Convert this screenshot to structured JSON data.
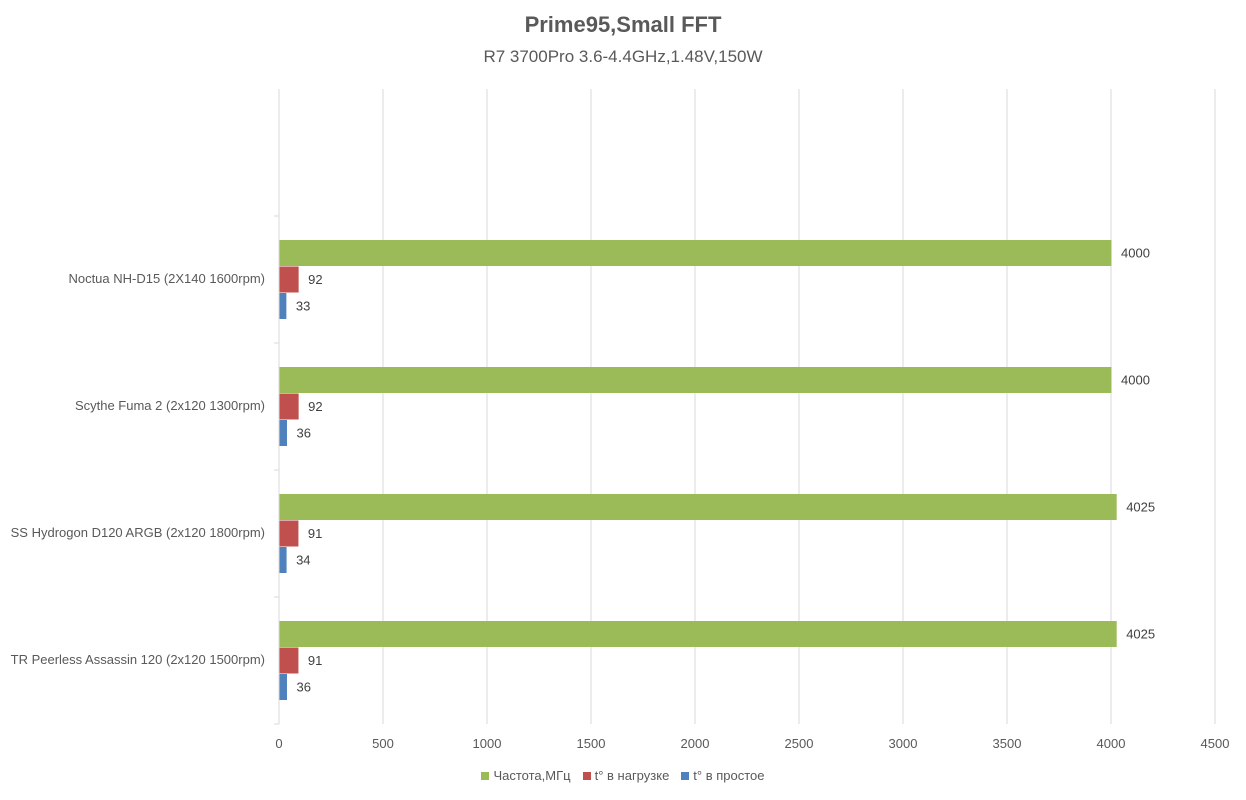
{
  "chart_data": {
    "type": "bar",
    "orientation": "horizontal",
    "title": "Prime95,Small FFT",
    "subtitle": "R7 3700Pro 3.6-4.4GHz,1.48V,150W",
    "xlabel": "",
    "ylabel": "",
    "xlim": [
      0,
      4500
    ],
    "x_ticks": [
      0,
      500,
      1000,
      1500,
      2000,
      2500,
      3000,
      3500,
      4000,
      4500
    ],
    "grid": true,
    "legend_position": "bottom",
    "categories": [
      "Noctua NH-D15 (2X140 1600rpm)",
      "Scythe Fuma 2 (2x120 1300rpm)",
      "SS Hydrogon D120 ARGB (2x120 1800rpm)",
      "TR Peerless Assassin 120 (2x120 1500rpm)"
    ],
    "series": [
      {
        "name": "Частота,МГц",
        "color": "#9bbb59",
        "values": [
          4000,
          4000,
          4025,
          4025
        ]
      },
      {
        "name": "t° в нагрузке",
        "color": "#c0504d",
        "values": [
          92,
          92,
          91,
          91
        ]
      },
      {
        "name": "t° в простое",
        "color": "#4f81bd",
        "values": [
          33,
          36,
          34,
          36
        ]
      }
    ]
  }
}
